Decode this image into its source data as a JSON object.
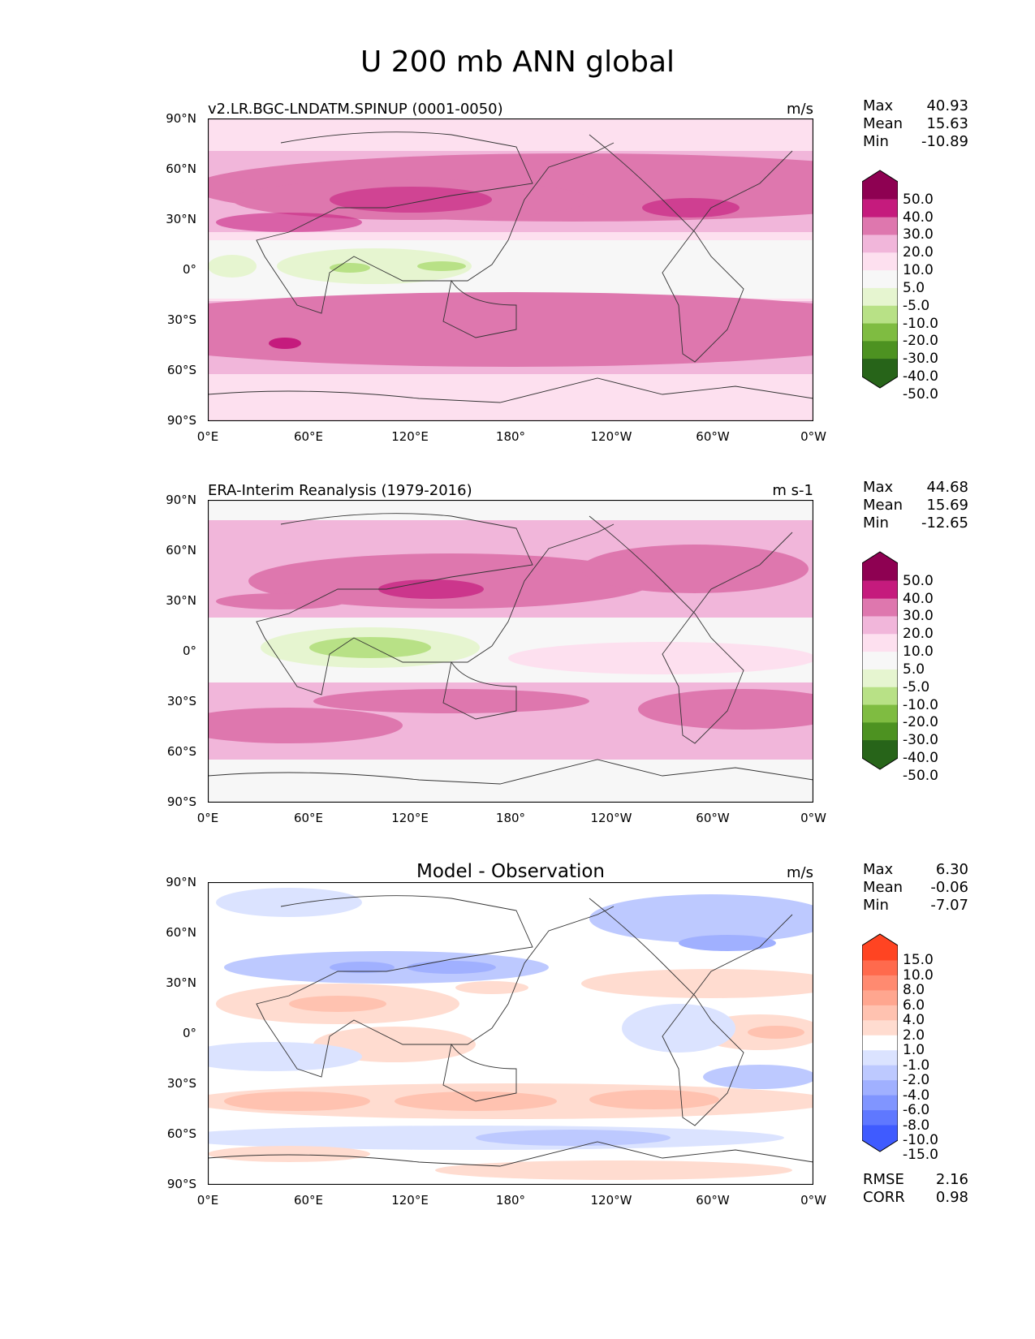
{
  "title": "U 200 mb ANN global",
  "panels": [
    {
      "title": "v2.LR.BGC-LNDATM.SPINUP (0001-0050)",
      "units": "m/s",
      "stats": {
        "max_label": "Max",
        "max": "40.93",
        "mean_label": "Mean",
        "mean": "15.63",
        "min_label": "Min",
        "min": "-10.89"
      },
      "colorbar": {
        "levels": [
          "50.0",
          "40.0",
          "30.0",
          "20.0",
          "10.0",
          "5.0",
          "-5.0",
          "-10.0",
          "-20.0",
          "-30.0",
          "-40.0",
          "-50.0"
        ],
        "colors": [
          "#8e0152",
          "#c51b7d",
          "#de77ae",
          "#f1b6da",
          "#fde0ef",
          "#f7f7f7",
          "#e6f5d0",
          "#b8e186",
          "#7fbc41",
          "#4d9221",
          "#276419"
        ]
      }
    },
    {
      "title": "ERA-Interim Reanalysis (1979-2016)",
      "units": "m s-1",
      "stats": {
        "max_label": "Max",
        "max": "44.68",
        "mean_label": "Mean",
        "mean": "15.69",
        "min_label": "Min",
        "min": "-12.65"
      },
      "colorbar": {
        "levels": [
          "50.0",
          "40.0",
          "30.0",
          "20.0",
          "10.0",
          "5.0",
          "-5.0",
          "-10.0",
          "-20.0",
          "-30.0",
          "-40.0",
          "-50.0"
        ],
        "colors": [
          "#8e0152",
          "#c51b7d",
          "#de77ae",
          "#f1b6da",
          "#fde0ef",
          "#f7f7f7",
          "#e6f5d0",
          "#b8e186",
          "#7fbc41",
          "#4d9221",
          "#276419"
        ]
      }
    },
    {
      "title": "Model - Observation",
      "units": "m/s",
      "stats": {
        "max_label": "Max",
        "max": "6.30",
        "mean_label": "Mean",
        "mean": "-0.06",
        "min_label": "Min",
        "min": "-7.07"
      },
      "colorbar": {
        "levels": [
          "15.0",
          "10.0",
          "8.0",
          "6.0",
          "4.0",
          "2.0",
          "1.0",
          "-1.0",
          "-2.0",
          "-4.0",
          "-6.0",
          "-8.0",
          "-10.0",
          "-15.0"
        ],
        "colors": [
          "#ff4422",
          "#ff6a4d",
          "#ff8a70",
          "#ffa68f",
          "#ffc2b0",
          "#ffdcd0",
          "#ffffff",
          "#dbe3ff",
          "#bdc9ff",
          "#a0b0ff",
          "#8095ff",
          "#5f78ff",
          "#3f5bff"
        ]
      },
      "rmse_label": "RMSE",
      "rmse": "2.16",
      "corr_label": "CORR",
      "corr": "0.98"
    }
  ],
  "axes": {
    "yticks": [
      "90°N",
      "60°N",
      "30°N",
      "0°",
      "30°S",
      "60°S",
      "90°S"
    ],
    "xticks": [
      "0°E",
      "60°E",
      "120°E",
      "180°",
      "120°W",
      "60°W",
      "0°W"
    ]
  }
}
